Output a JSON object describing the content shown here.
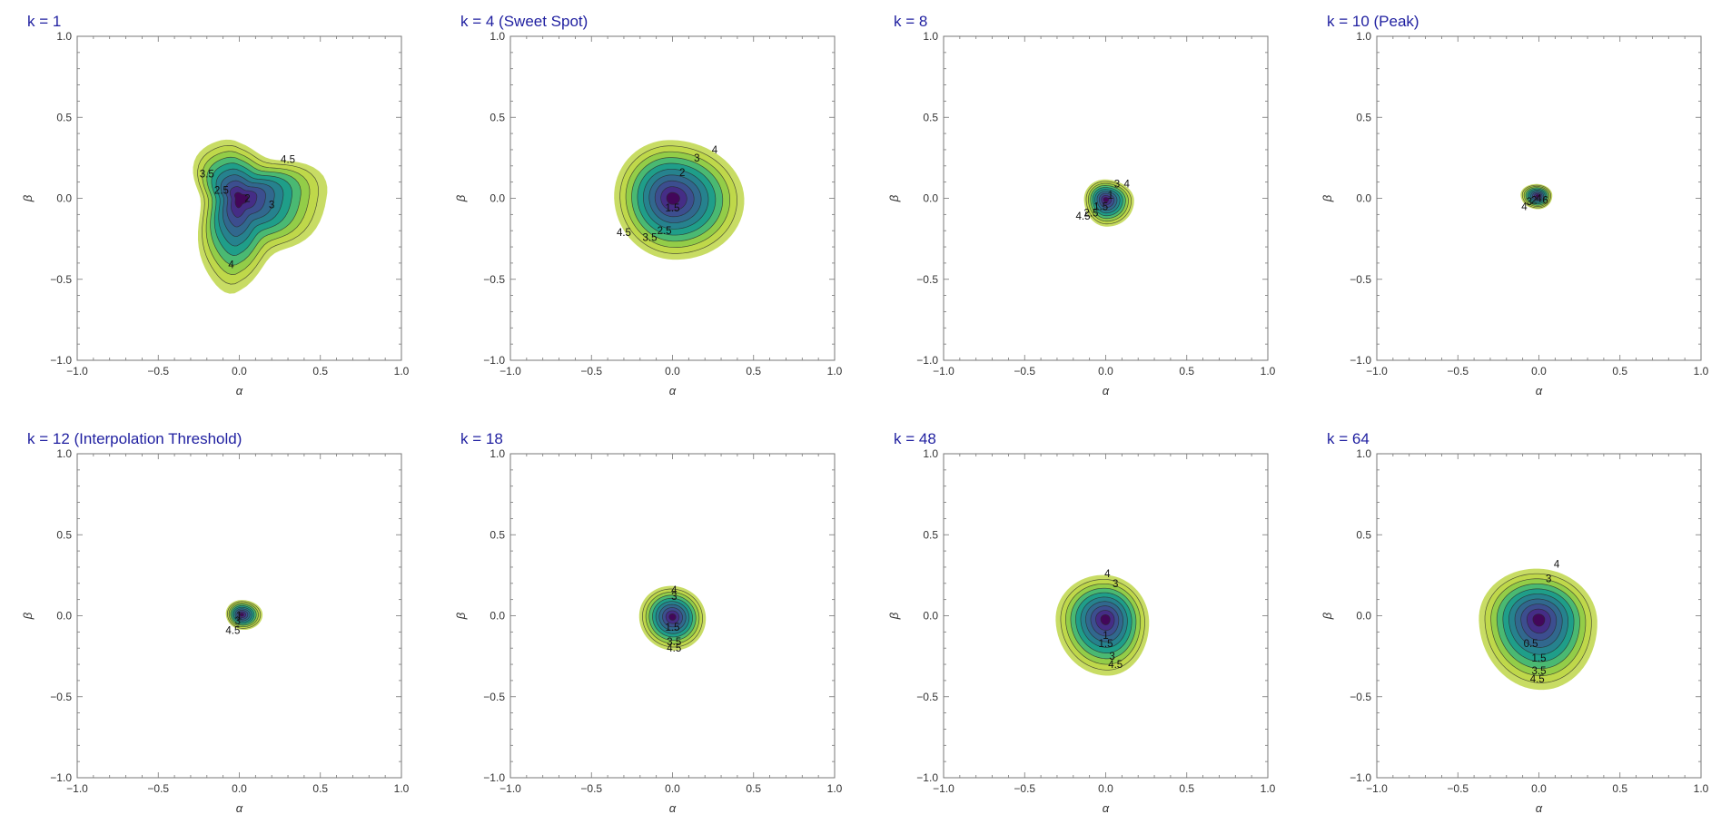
{
  "colors": {
    "title": "#1f1fa0",
    "frame": "#777777",
    "levels": [
      "#43075a",
      "#452d86",
      "#3c4e8f",
      "#31688e",
      "#26828e",
      "#1f9e89",
      "#4ab972",
      "#93cd48",
      "#bfd84a",
      "#c8dc64"
    ]
  },
  "chart_data": [
    {
      "type": "contour",
      "title": "k = 1",
      "xlabel": "α",
      "ylabel": "β",
      "xlim": [
        -1.0,
        1.0
      ],
      "ylim": [
        -1.0,
        1.0
      ],
      "xticks": [
        "−1.0",
        "−0.5",
        "0.0",
        "0.5",
        "1.0"
      ],
      "yticks": [
        "−1.0",
        "−0.5",
        "0.0",
        "0.5",
        "1.0"
      ],
      "center": [
        0.0,
        0.0
      ],
      "extent": [
        0.48,
        0.35,
        0.3,
        0.52
      ],
      "shape": "triangle",
      "levels": 9,
      "contour_labels": [
        {
          "text": "4.5",
          "x": 0.3,
          "y": 0.24
        },
        {
          "text": "3.5",
          "x": -0.2,
          "y": 0.15
        },
        {
          "text": "2.5",
          "x": -0.11,
          "y": 0.05
        },
        {
          "text": "2",
          "x": 0.05,
          "y": 0.0
        },
        {
          "text": "3",
          "x": 0.2,
          "y": -0.04
        },
        {
          "text": "4",
          "x": -0.05,
          "y": -0.41
        }
      ]
    },
    {
      "type": "contour",
      "title": "k = 4 (Sweet Spot)",
      "xlabel": "α",
      "ylabel": "β",
      "xlim": [
        -1.0,
        1.0
      ],
      "ylim": [
        -1.0,
        1.0
      ],
      "xticks": [
        "−1.0",
        "−0.5",
        "0.0",
        "0.5",
        "1.0"
      ],
      "yticks": [
        "−1.0",
        "−0.5",
        "0.0",
        "0.5",
        "1.0"
      ],
      "center": [
        0.0,
        0.0
      ],
      "extent": [
        0.43,
        0.37,
        0.35,
        0.39
      ],
      "shape": "oval",
      "levels": 9,
      "contour_labels": [
        {
          "text": "4",
          "x": 0.26,
          "y": 0.3
        },
        {
          "text": "3",
          "x": 0.15,
          "y": 0.25
        },
        {
          "text": "2",
          "x": 0.06,
          "y": 0.16
        },
        {
          "text": "1.5",
          "x": 0.0,
          "y": -0.06
        },
        {
          "text": "2.5",
          "x": -0.05,
          "y": -0.2
        },
        {
          "text": "3.5",
          "x": -0.14,
          "y": -0.24
        },
        {
          "text": "4.5",
          "x": -0.3,
          "y": -0.21
        }
      ]
    },
    {
      "type": "contour",
      "title": "k = 8",
      "xlabel": "α",
      "ylabel": "β",
      "xlim": [
        -1.0,
        1.0
      ],
      "ylim": [
        -1.0,
        1.0
      ],
      "xticks": [
        "−1.0",
        "−0.5",
        "0.0",
        "0.5",
        "1.0"
      ],
      "yticks": [
        "−1.0",
        "−0.5",
        "0.0",
        "0.5",
        "1.0"
      ],
      "center": [
        0.0,
        -0.01
      ],
      "extent": [
        0.17,
        0.13,
        0.13,
        0.17
      ],
      "shape": "oval",
      "levels": 9,
      "contour_labels": [
        {
          "text": "3",
          "x": 0.07,
          "y": 0.09
        },
        {
          "text": "4",
          "x": 0.13,
          "y": 0.09
        },
        {
          "text": "1",
          "x": 0.03,
          "y": 0.02
        },
        {
          "text": "1.5",
          "x": -0.03,
          "y": -0.05
        },
        {
          "text": "2.5",
          "x": -0.09,
          "y": -0.09
        },
        {
          "text": "4.5",
          "x": -0.14,
          "y": -0.11
        }
      ]
    },
    {
      "type": "contour",
      "title": "k = 10 (Peak)",
      "xlabel": "α",
      "ylabel": "β",
      "xlim": [
        -1.0,
        1.0
      ],
      "ylim": [
        -1.0,
        1.0
      ],
      "xticks": [
        "−1.0",
        "−0.5",
        "0.0",
        "0.5",
        "1.0"
      ],
      "yticks": [
        "−1.0",
        "−0.5",
        "0.0",
        "0.5",
        "1.0"
      ],
      "center": [
        -0.01,
        0.02
      ],
      "extent": [
        0.09,
        0.07,
        0.1,
        0.09
      ],
      "shape": "oval",
      "levels": 9,
      "contour_labels": [
        {
          "text": "3",
          "x": -0.06,
          "y": -0.02
        },
        {
          "text": "2",
          "x": -0.03,
          "y": -0.01
        },
        {
          "text": "4",
          "x": 0.0,
          "y": 0.0
        },
        {
          "text": "6",
          "x": 0.04,
          "y": -0.01
        },
        {
          "text": "4",
          "x": -0.09,
          "y": -0.05
        }
      ]
    },
    {
      "type": "contour",
      "title": "k = 12 (Interpolation Threshold)",
      "xlabel": "α",
      "ylabel": "β",
      "xlim": [
        -1.0,
        1.0
      ],
      "ylim": [
        -1.0,
        1.0
      ],
      "xticks": [
        "−1.0",
        "−0.5",
        "0.0",
        "0.5",
        "1.0"
      ],
      "yticks": [
        "−1.0",
        "−0.5",
        "0.0",
        "0.5",
        "1.0"
      ],
      "center": [
        0.02,
        0.01
      ],
      "extent": [
        0.12,
        0.09,
        0.1,
        0.1
      ],
      "shape": "oval",
      "levels": 9,
      "contour_labels": [
        {
          "text": "1",
          "x": 0.0,
          "y": 0.0
        },
        {
          "text": "3",
          "x": -0.01,
          "y": -0.03
        },
        {
          "text": "4.5",
          "x": -0.04,
          "y": -0.09
        }
      ]
    },
    {
      "type": "contour",
      "title": "k = 18",
      "xlabel": "α",
      "ylabel": "β",
      "xlim": [
        -1.0,
        1.0
      ],
      "ylim": [
        -1.0,
        1.0
      ],
      "xticks": [
        "−1.0",
        "−0.5",
        "0.0",
        "0.5",
        "1.0"
      ],
      "yticks": [
        "−1.0",
        "−0.5",
        "0.0",
        "0.5",
        "1.0"
      ],
      "center": [
        0.0,
        -0.01
      ],
      "extent": [
        0.2,
        0.2,
        0.2,
        0.21
      ],
      "shape": "oval",
      "levels": 9,
      "contour_labels": [
        {
          "text": "4",
          "x": 0.01,
          "y": 0.16
        },
        {
          "text": "3",
          "x": 0.01,
          "y": 0.12
        },
        {
          "text": "1.5",
          "x": 0.0,
          "y": -0.07
        },
        {
          "text": "3.5",
          "x": 0.01,
          "y": -0.16
        },
        {
          "text": "4.5",
          "x": 0.01,
          "y": -0.2
        }
      ]
    },
    {
      "type": "contour",
      "title": "k = 48",
      "xlabel": "α",
      "ylabel": "β",
      "xlim": [
        -1.0,
        1.0
      ],
      "ylim": [
        -1.0,
        1.0
      ],
      "xticks": [
        "−1.0",
        "−0.5",
        "0.0",
        "0.5",
        "1.0"
      ],
      "yticks": [
        "−1.0",
        "−0.5",
        "0.0",
        "0.5",
        "1.0"
      ],
      "center": [
        0.0,
        -0.03
      ],
      "extent": [
        0.26,
        0.29,
        0.3,
        0.35
      ],
      "shape": "oval",
      "levels": 9,
      "contour_labels": [
        {
          "text": "4",
          "x": 0.01,
          "y": 0.26
        },
        {
          "text": "3",
          "x": 0.06,
          "y": 0.2
        },
        {
          "text": "1",
          "x": 0.0,
          "y": -0.12
        },
        {
          "text": "1.5",
          "x": 0.0,
          "y": -0.17
        },
        {
          "text": "3",
          "x": 0.04,
          "y": -0.25
        },
        {
          "text": "4.5",
          "x": 0.06,
          "y": -0.3
        }
      ]
    },
    {
      "type": "contour",
      "title": "k = 64",
      "xlabel": "α",
      "ylabel": "β",
      "xlim": [
        -1.0,
        1.0
      ],
      "ylim": [
        -1.0,
        1.0
      ],
      "xticks": [
        "−1.0",
        "−0.5",
        "0.0",
        "0.5",
        "1.0"
      ],
      "yticks": [
        "−1.0",
        "−0.5",
        "0.0",
        "0.5",
        "1.0"
      ],
      "center": [
        0.0,
        -0.03
      ],
      "extent": [
        0.35,
        0.33,
        0.36,
        0.44
      ],
      "shape": "oval",
      "levels": 9,
      "contour_labels": [
        {
          "text": "4",
          "x": 0.11,
          "y": 0.32
        },
        {
          "text": "3",
          "x": 0.06,
          "y": 0.23
        },
        {
          "text": "0.5",
          "x": -0.05,
          "y": -0.17
        },
        {
          "text": "1.5",
          "x": 0.0,
          "y": -0.26
        },
        {
          "text": "3.5",
          "x": 0.0,
          "y": -0.34
        },
        {
          "text": "4.5",
          "x": -0.01,
          "y": -0.39
        }
      ]
    }
  ]
}
